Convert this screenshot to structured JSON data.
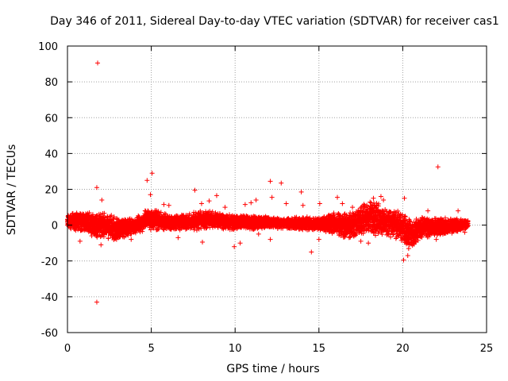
{
  "chart_data": {
    "type": "scatter",
    "title": "Day 346 of 2011, Sidereal Day-to-day VTEC variation (SDTVAR) for receiver cas1",
    "xlabel": "GPS time / hours",
    "ylabel": "SDTVAR / TECUs",
    "xlim": [
      0,
      25
    ],
    "ylim": [
      -60,
      100
    ],
    "xticks": [
      0,
      5,
      10,
      15,
      20,
      25
    ],
    "yticks": [
      -60,
      -40,
      -20,
      0,
      20,
      40,
      60,
      80,
      100
    ],
    "grid": true,
    "marker": "+",
    "color": "#ff0000",
    "legend": "none",
    "x_range_of_samples": [
      0,
      23.9
    ],
    "band_envelope": {
      "description_hours": [
        0,
        1,
        1.5,
        2,
        3,
        4,
        4.5,
        5,
        6,
        7,
        8,
        9,
        10,
        11,
        12,
        13,
        14,
        15,
        16,
        17,
        18,
        18.5,
        19,
        20,
        20.5,
        21,
        22,
        23,
        23.9
      ],
      "upper": [
        6,
        8,
        7,
        8,
        4,
        4,
        8,
        10,
        6,
        6,
        9,
        7,
        6,
        6,
        5,
        4,
        5,
        4,
        8,
        8,
        14,
        13,
        9,
        8,
        4,
        5,
        5,
        4,
        3
      ],
      "lower": [
        -2,
        -4,
        -6,
        -8,
        -9,
        -5,
        -4,
        -3,
        -3,
        -3,
        -3,
        -2,
        -3,
        -3,
        -2,
        -2,
        -3,
        -3,
        -6,
        -8,
        -5,
        -7,
        -6,
        -10,
        -15,
        -8,
        -6,
        -5,
        -2
      ]
    },
    "outliers": [
      {
        "x": 1.8,
        "y": 90.5
      },
      {
        "x": 1.75,
        "y": 21
      },
      {
        "x": 1.75,
        "y": -43
      },
      {
        "x": 2.05,
        "y": 14
      },
      {
        "x": 0.75,
        "y": -9
      },
      {
        "x": 1.45,
        "y": -6
      },
      {
        "x": 2.0,
        "y": -11
      },
      {
        "x": 3.8,
        "y": -8
      },
      {
        "x": 4.75,
        "y": 25
      },
      {
        "x": 5.05,
        "y": 29
      },
      {
        "x": 4.95,
        "y": 17
      },
      {
        "x": 5.75,
        "y": 11.5
      },
      {
        "x": 6.05,
        "y": 11
      },
      {
        "x": 7.6,
        "y": 19.5
      },
      {
        "x": 8.0,
        "y": 12
      },
      {
        "x": 8.45,
        "y": 13.5
      },
      {
        "x": 8.9,
        "y": 16.5
      },
      {
        "x": 8.05,
        "y": -9.5
      },
      {
        "x": 9.95,
        "y": -12
      },
      {
        "x": 10.3,
        "y": -10
      },
      {
        "x": 10.6,
        "y": 11.5
      },
      {
        "x": 10.95,
        "y": 12.5
      },
      {
        "x": 11.25,
        "y": 14
      },
      {
        "x": 11.4,
        "y": -5
      },
      {
        "x": 12.1,
        "y": 24.5
      },
      {
        "x": 12.2,
        "y": 15.5
      },
      {
        "x": 12.75,
        "y": 23.5
      },
      {
        "x": 12.1,
        "y": -8
      },
      {
        "x": 13.05,
        "y": 12
      },
      {
        "x": 13.95,
        "y": 18.5
      },
      {
        "x": 14.55,
        "y": -15
      },
      {
        "x": 14.05,
        "y": 11
      },
      {
        "x": 15.05,
        "y": 12
      },
      {
        "x": 15.0,
        "y": -8
      },
      {
        "x": 16.1,
        "y": 15.5
      },
      {
        "x": 16.4,
        "y": 12
      },
      {
        "x": 16.8,
        "y": -7
      },
      {
        "x": 17.5,
        "y": -9
      },
      {
        "x": 17.95,
        "y": -10
      },
      {
        "x": 17.0,
        "y": 10
      },
      {
        "x": 18.25,
        "y": 15
      },
      {
        "x": 18.7,
        "y": 16
      },
      {
        "x": 18.85,
        "y": 14
      },
      {
        "x": 20.1,
        "y": 15
      },
      {
        "x": 20.05,
        "y": -19.5
      },
      {
        "x": 20.3,
        "y": -17
      },
      {
        "x": 22.1,
        "y": 32.5
      },
      {
        "x": 22.0,
        "y": -8
      },
      {
        "x": 23.3,
        "y": 8
      },
      {
        "x": 23.7,
        "y": -4
      },
      {
        "x": 21.5,
        "y": 8
      },
      {
        "x": 6.6,
        "y": -7
      },
      {
        "x": 9.4,
        "y": 10
      }
    ]
  }
}
